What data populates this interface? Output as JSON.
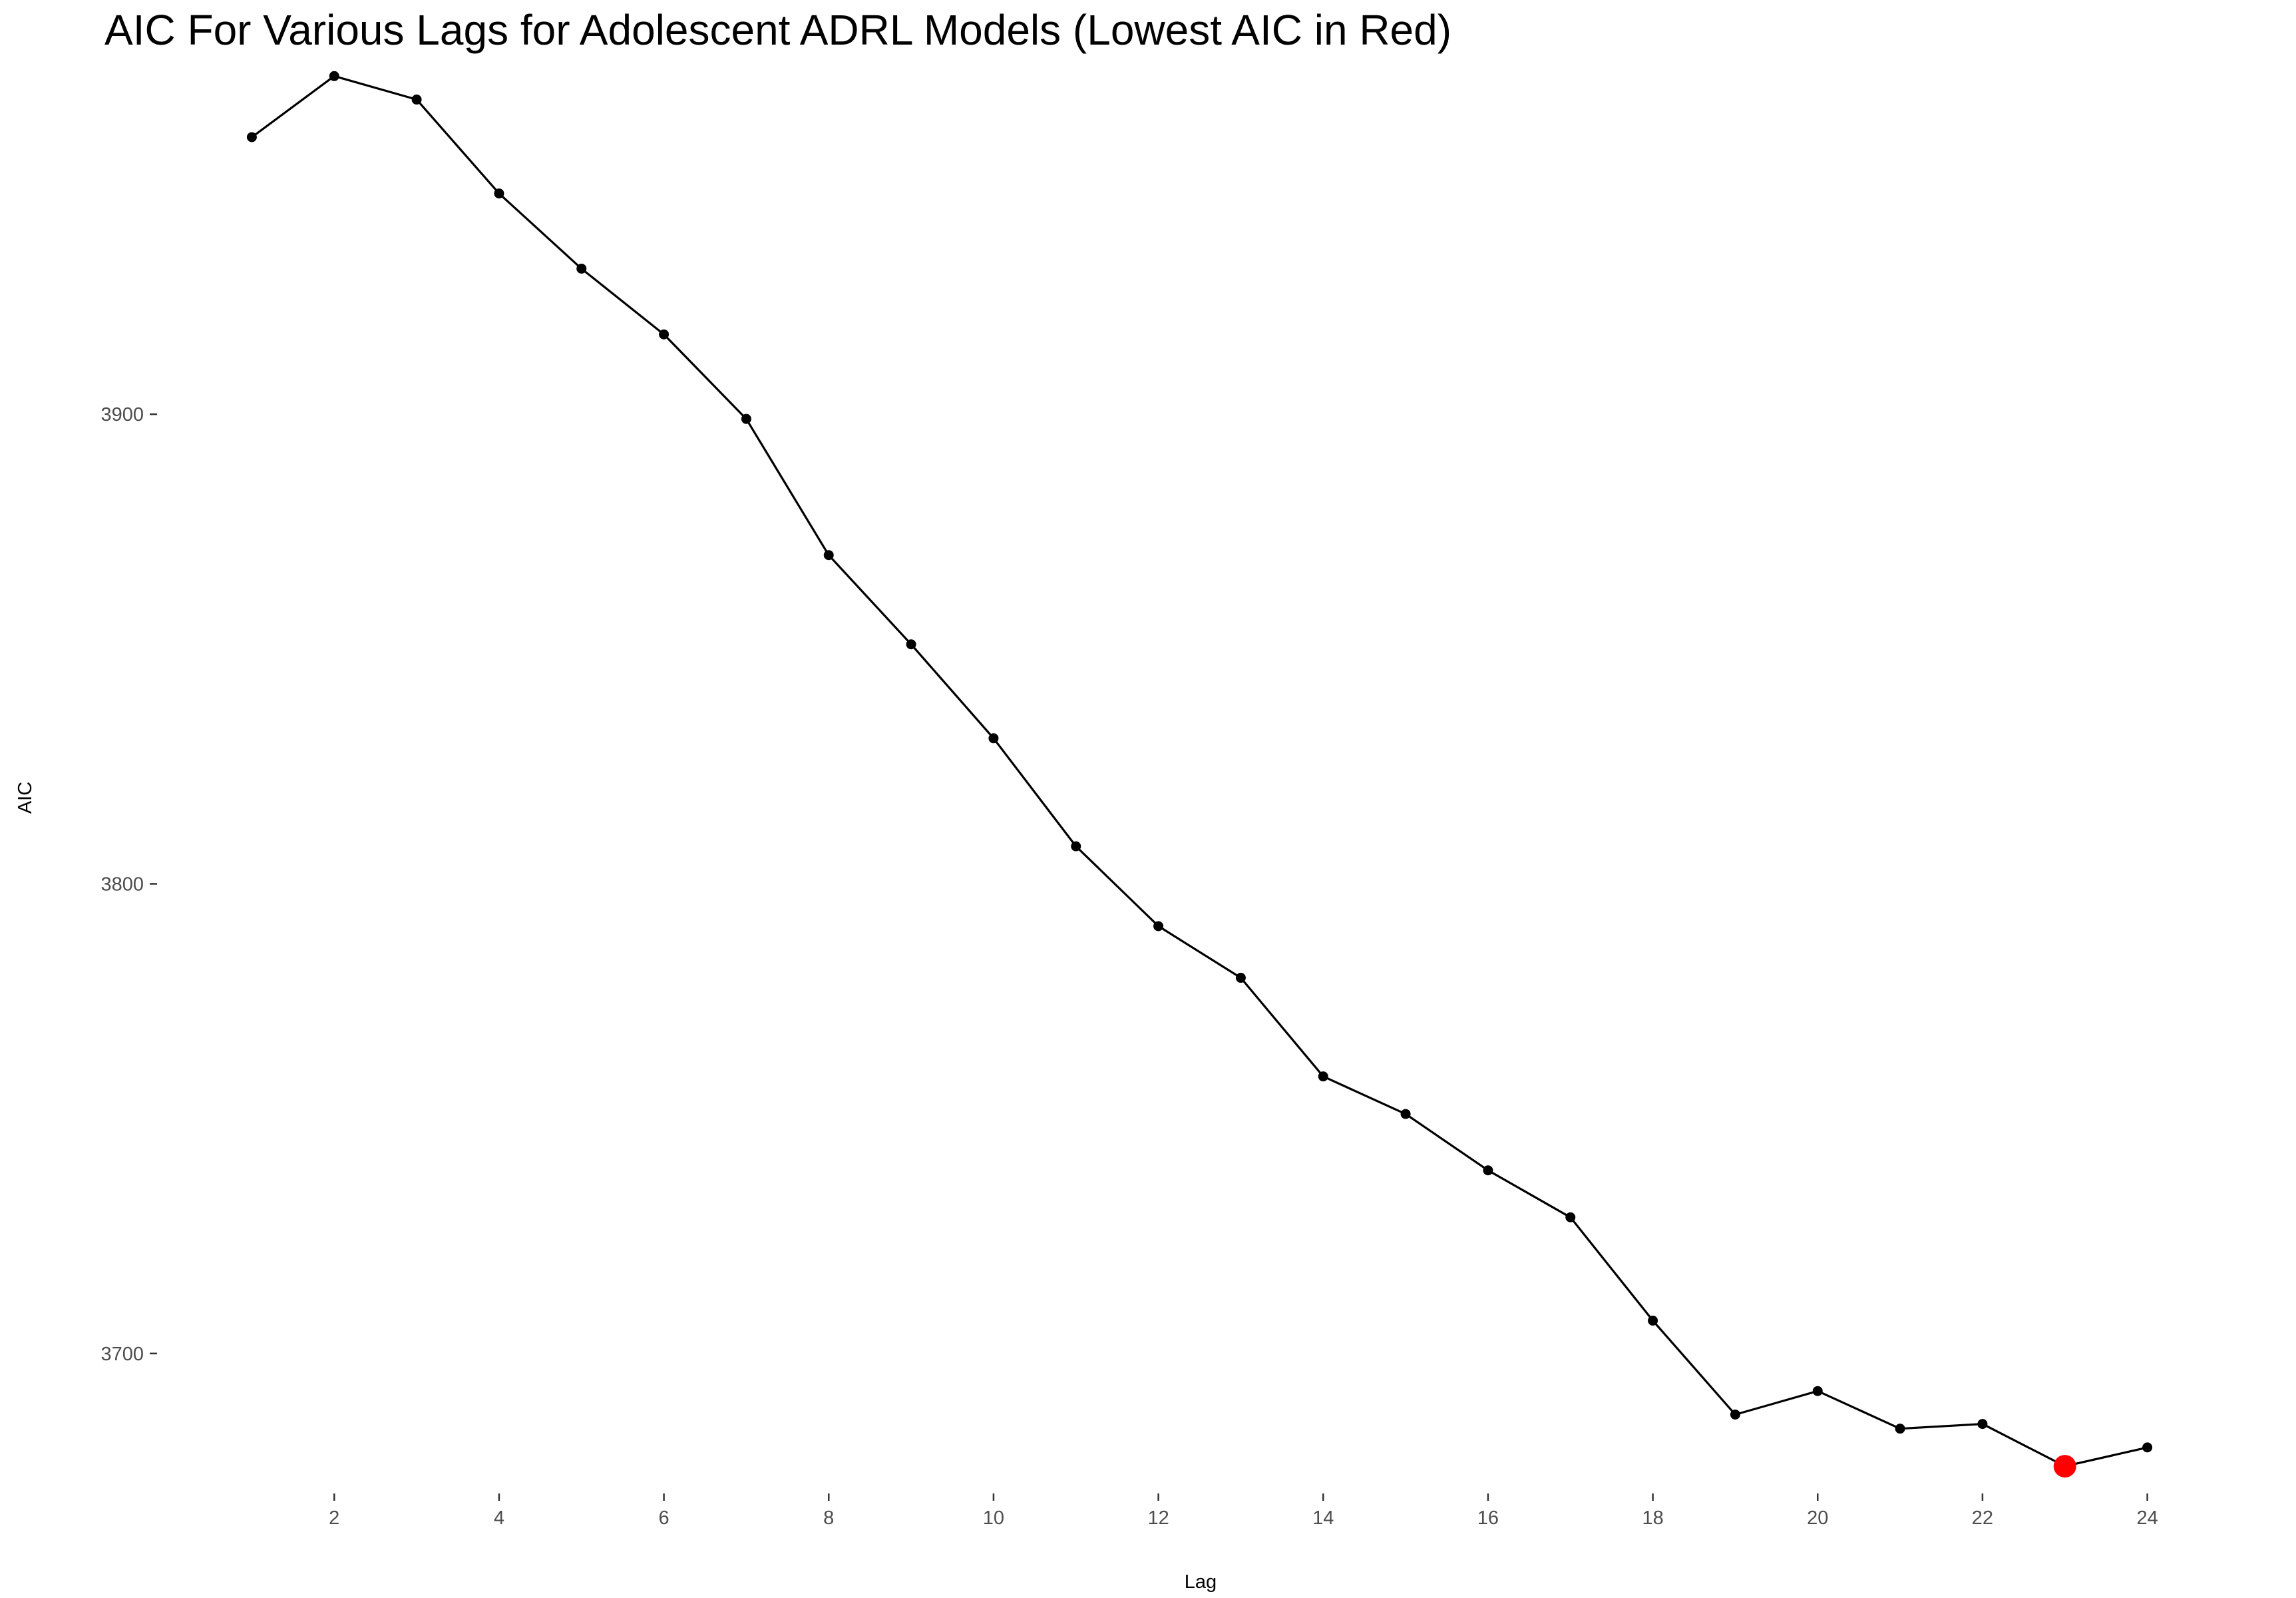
{
  "chart_data": {
    "type": "line",
    "title": "AIC For Various Lags for Adolescent ADRL Models (Lowest AIC in Red)",
    "xlabel": "Lag",
    "ylabel": "AIC",
    "xlim": [
      -0.15,
      25.15
    ],
    "ylim": [
      3670.2,
      3965.8
    ],
    "x_ticks": [
      2,
      4,
      6,
      8,
      10,
      12,
      14,
      16,
      18,
      20,
      22,
      24
    ],
    "y_ticks": [
      3700,
      3800,
      3900
    ],
    "grid": false,
    "legend": "none",
    "series": [
      {
        "x": [
          1,
          2,
          3,
          4,
          5,
          6,
          7,
          8,
          9,
          10,
          11,
          12,
          13,
          14,
          15,
          16,
          17,
          18,
          19,
          20,
          21,
          22,
          23,
          24
        ],
        "y": [
          3959,
          3972,
          3967,
          3947,
          3931,
          3917,
          3899,
          3870,
          3851,
          3831,
          3808,
          3791,
          3780,
          3759,
          3751,
          3739,
          3729,
          3707,
          3687,
          3692,
          3684,
          3685,
          3676,
          3680
        ],
        "color": "#000000"
      }
    ],
    "highlight": {
      "x": 23,
      "y": 3676,
      "color": "#ff0000"
    }
  }
}
